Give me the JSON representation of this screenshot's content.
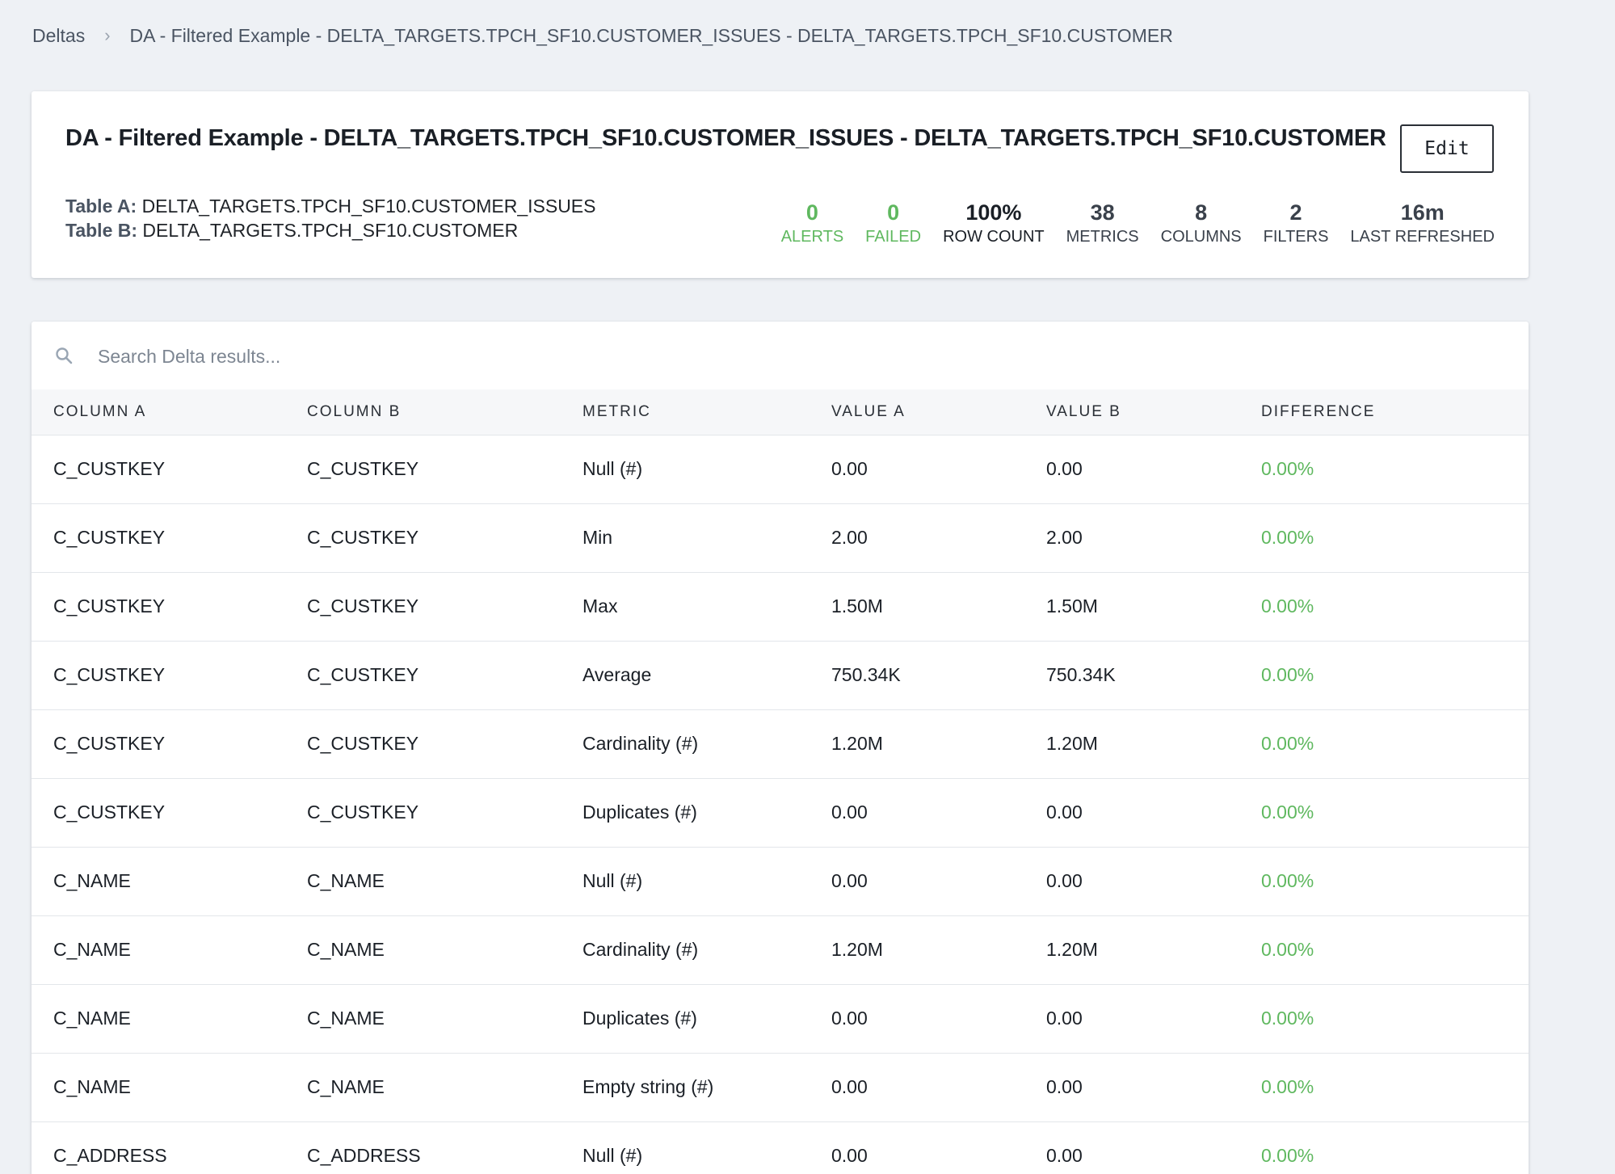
{
  "breadcrumb": {
    "root": "Deltas",
    "current": "DA - Filtered Example - DELTA_TARGETS.TPCH_SF10.CUSTOMER_ISSUES - DELTA_TARGETS.TPCH_SF10.CUSTOMER"
  },
  "header": {
    "title": "DA - Filtered Example - DELTA_TARGETS.TPCH_SF10.CUSTOMER_ISSUES - DELTA_TARGETS.TPCH_SF10.CUSTOMER",
    "edit_label": "Edit",
    "table_a_label": "Table A:",
    "table_a_value": "DELTA_TARGETS.TPCH_SF10.CUSTOMER_ISSUES",
    "table_b_label": "Table B:",
    "table_b_value": "DELTA_TARGETS.TPCH_SF10.CUSTOMER"
  },
  "stats": [
    {
      "value": "0",
      "label": "ALERTS",
      "tone": "good"
    },
    {
      "value": "0",
      "label": "FAILED",
      "tone": "good"
    },
    {
      "value": "100%",
      "label": "ROW COUNT",
      "tone": "dark"
    },
    {
      "value": "38",
      "label": "METRICS",
      "tone": "normal"
    },
    {
      "value": "8",
      "label": "COLUMNS",
      "tone": "normal"
    },
    {
      "value": "2",
      "label": "FILTERS",
      "tone": "normal"
    },
    {
      "value": "16m",
      "label": "LAST REFRESHED",
      "tone": "normal"
    }
  ],
  "search": {
    "placeholder": "Search Delta results...",
    "icon": "search-icon"
  },
  "table": {
    "headers": [
      "COLUMN A",
      "COLUMN B",
      "METRIC",
      "VALUE A",
      "VALUE B",
      "DIFFERENCE"
    ],
    "rows": [
      [
        "C_CUSTKEY",
        "C_CUSTKEY",
        "Null (#)",
        "0.00",
        "0.00",
        "0.00%"
      ],
      [
        "C_CUSTKEY",
        "C_CUSTKEY",
        "Min",
        "2.00",
        "2.00",
        "0.00%"
      ],
      [
        "C_CUSTKEY",
        "C_CUSTKEY",
        "Max",
        "1.50M",
        "1.50M",
        "0.00%"
      ],
      [
        "C_CUSTKEY",
        "C_CUSTKEY",
        "Average",
        "750.34K",
        "750.34K",
        "0.00%"
      ],
      [
        "C_CUSTKEY",
        "C_CUSTKEY",
        "Cardinality (#)",
        "1.20M",
        "1.20M",
        "0.00%"
      ],
      [
        "C_CUSTKEY",
        "C_CUSTKEY",
        "Duplicates (#)",
        "0.00",
        "0.00",
        "0.00%"
      ],
      [
        "C_NAME",
        "C_NAME",
        "Null (#)",
        "0.00",
        "0.00",
        "0.00%"
      ],
      [
        "C_NAME",
        "C_NAME",
        "Cardinality (#)",
        "1.20M",
        "1.20M",
        "0.00%"
      ],
      [
        "C_NAME",
        "C_NAME",
        "Duplicates (#)",
        "0.00",
        "0.00",
        "0.00%"
      ],
      [
        "C_NAME",
        "C_NAME",
        "Empty string (#)",
        "0.00",
        "0.00",
        "0.00%"
      ],
      [
        "C_ADDRESS",
        "C_ADDRESS",
        "Null (#)",
        "0.00",
        "0.00",
        "0.00%"
      ]
    ]
  },
  "colors": {
    "background": "#eef1f5",
    "good": "#5fb85f",
    "text": "#1a1f26"
  }
}
